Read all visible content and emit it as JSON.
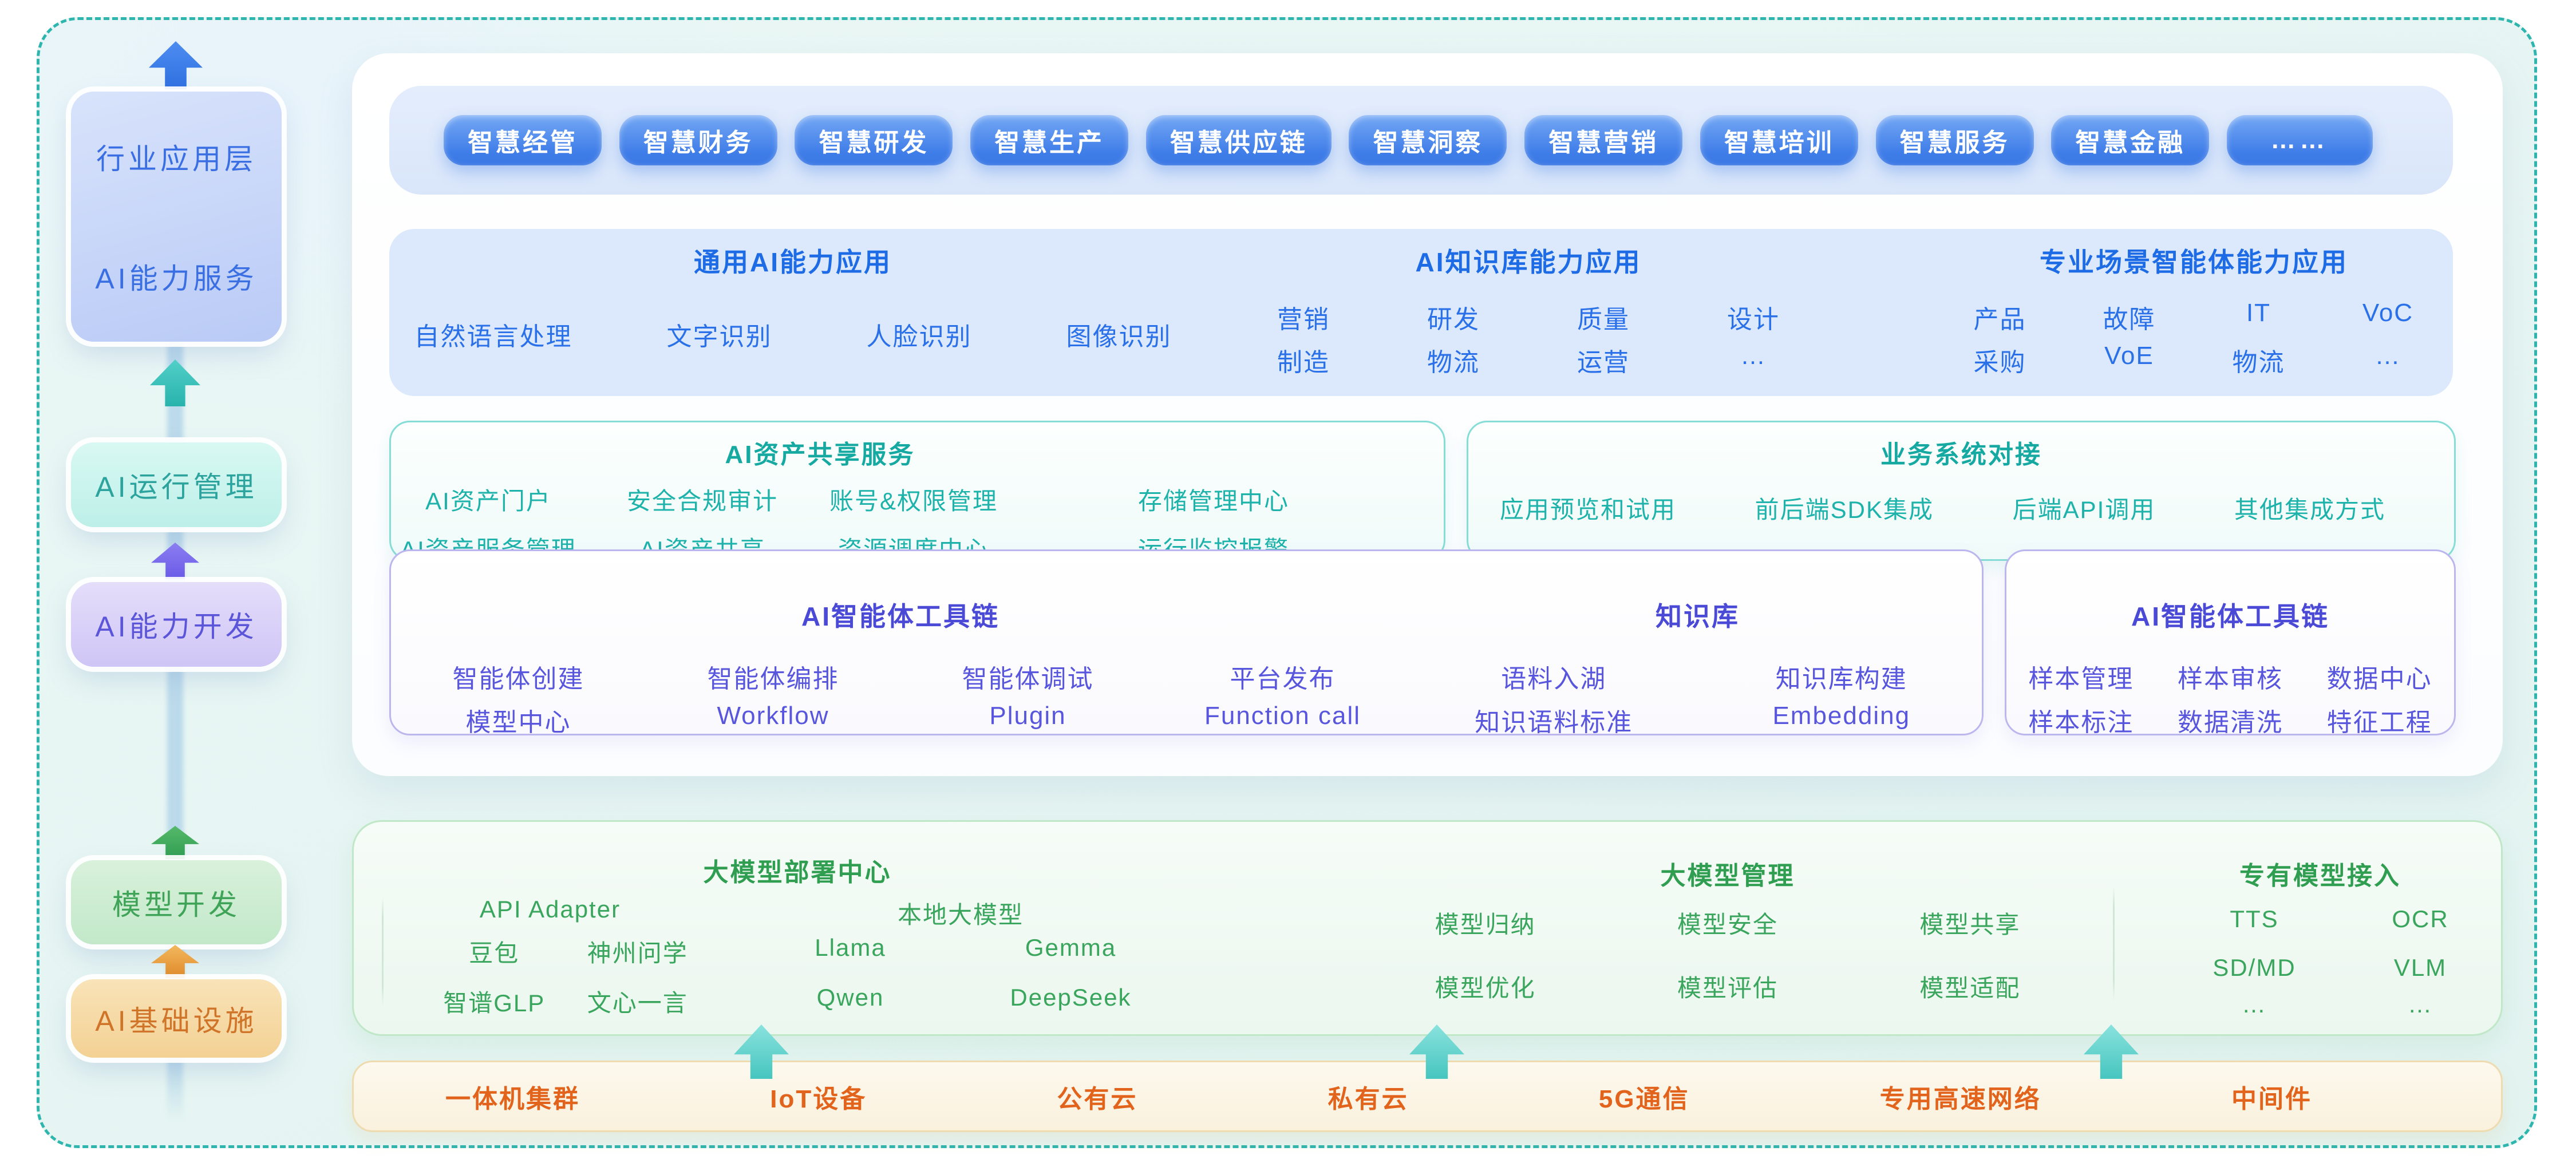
{
  "sidebar": {
    "layers": [
      {
        "label_top": "行业应用层",
        "label_bottom": "AI能力服务",
        "color": "#3a6fe3"
      },
      {
        "label": "AI运行管理",
        "color": "#2da39d"
      },
      {
        "label": "AI能力开发",
        "color": "#5b55d9"
      },
      {
        "label": "模型开发",
        "color": "#3fa458"
      },
      {
        "label": "AI基础设施",
        "color": "#d0742a"
      }
    ]
  },
  "app_pills": {
    "items": [
      "智慧经管",
      "智慧财务",
      "智慧研发",
      "智慧生产",
      "智慧供应链",
      "智慧洞察",
      "智慧营销",
      "智慧培训",
      "智慧服务",
      "智慧金融",
      "……"
    ]
  },
  "capability_section": {
    "groups": [
      {
        "title": "通用AI能力应用",
        "rows": [
          [
            "自然语言处理",
            "文字识别",
            "人脸识别",
            "图像识别"
          ]
        ]
      },
      {
        "title": "AI知识库能力应用",
        "rows": [
          [
            "营销",
            "研发",
            "质量",
            "设计"
          ],
          [
            "制造",
            "物流",
            "运营",
            "…"
          ]
        ]
      },
      {
        "title": "专业场景智能体能力应用",
        "rows": [
          [
            "产品",
            "故障",
            "IT",
            "VoC"
          ],
          [
            "采购",
            "VoE",
            "物流",
            "…"
          ]
        ]
      }
    ]
  },
  "asset_section": {
    "share": {
      "title": "AI资产共享服务",
      "columns": [
        [
          "AI资产门户",
          "AI资产服务管理"
        ],
        [
          "安全合规审计",
          "AI资产共享"
        ],
        [
          "账号&权限管理",
          "资源调度中心"
        ],
        [
          "存储管理中心",
          "运行监控报警"
        ]
      ]
    },
    "integration": {
      "title": "业务系统对接",
      "items": [
        "应用预览和试用",
        "前后端SDK集成",
        "后端API调用",
        "其他集成方式"
      ]
    }
  },
  "agent_section": {
    "toolchain": {
      "title": "AI智能体工具链",
      "rows": [
        [
          "智能体创建",
          "智能体编排",
          "智能体调试",
          "平台发布"
        ],
        [
          "模型中心",
          "Workflow",
          "Plugin",
          "Function call"
        ]
      ]
    },
    "knowledge": {
      "title": "知识库",
      "rows": [
        [
          "语料入湖",
          "知识库构建"
        ],
        [
          "知识语料标准",
          "Embedding"
        ]
      ]
    },
    "data_toolchain": {
      "title": "AI智能体工具链",
      "rows": [
        [
          "样本管理",
          "样本审核",
          "数据中心"
        ],
        [
          "样本标注",
          "数据清洗",
          "特征工程"
        ]
      ]
    }
  },
  "model_section": {
    "deploy": {
      "title": "大模型部署中心",
      "api_adapter": {
        "label": "API Adapter",
        "rows": [
          [
            "豆包",
            "神州问学"
          ],
          [
            "智谱GLP",
            "文心一言"
          ]
        ]
      },
      "local_models": {
        "label": "本地大模型",
        "rows": [
          [
            "Llama",
            "Gemma"
          ],
          [
            "Qwen",
            "DeepSeek"
          ]
        ]
      }
    },
    "management": {
      "title": "大模型管理",
      "rows": [
        [
          "模型归纳",
          "模型安全",
          "模型共享"
        ],
        [
          "模型优化",
          "模型评估",
          "模型适配"
        ]
      ]
    },
    "dedicated": {
      "title": "专有模型接入",
      "rows": [
        [
          "TTS",
          "OCR"
        ],
        [
          "SD/MD",
          "VLM"
        ],
        [
          "…",
          "…"
        ]
      ]
    }
  },
  "infra_bar": {
    "items": [
      "一体机集群",
      "IoT设备",
      "公有云",
      "私有云",
      "5G通信",
      "专用高速网络",
      "中间件"
    ]
  },
  "colors": {
    "frame_dash": "#2db5ae",
    "pill_blue": "#3f7de8",
    "blue_text": "#2a70e8",
    "teal_text": "#15a9a1",
    "purple_text": "#4b4ad6",
    "green_text": "#2f9e50",
    "orange_text": "#e2641c"
  }
}
